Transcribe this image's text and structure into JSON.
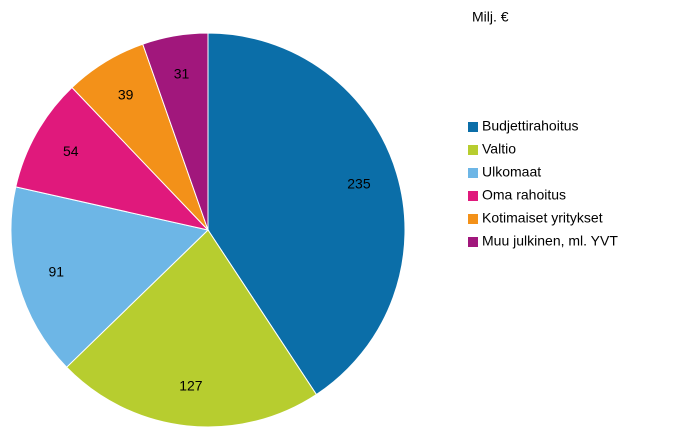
{
  "chart_data": {
    "type": "pie",
    "subtitle": "Milj. €",
    "categories": [
      "Budjettirahoitus",
      "Valtio",
      "Ulkomaat",
      "Oma rahoitus",
      "Kotimaiset yritykset",
      "Muu julkinen, ml. YVT"
    ],
    "values": [
      235,
      127,
      91,
      54,
      39,
      31
    ],
    "colors": [
      "#0b6ea8",
      "#b7cd2f",
      "#6db6e6",
      "#e0197c",
      "#f39119",
      "#a1177c"
    ],
    "legend": "right"
  }
}
